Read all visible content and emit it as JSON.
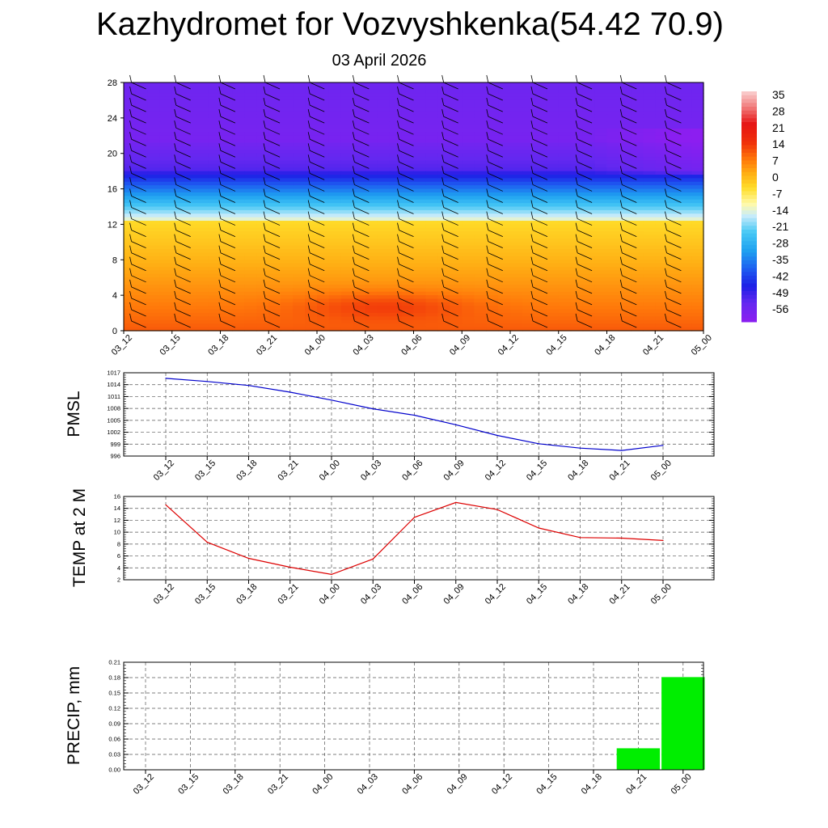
{
  "title": "Kazhydromet for Vozvyshkenka(54.42 70.9)",
  "subtitle": "03 April 2026",
  "colors": {
    "pmsl_line": "#0000cc",
    "temp_line": "#dd0000",
    "precip_bar": "#00ee00"
  },
  "chart_data": [
    {
      "type": "heatmap",
      "name": "upper-air-section",
      "ylim": [
        0,
        28
      ],
      "yticks": [
        "0",
        "4",
        "8",
        "12",
        "16",
        "20",
        "24",
        "28"
      ],
      "categories": [
        "03_12",
        "03_15",
        "03_18",
        "03_21",
        "04_00",
        "04_03",
        "04_06",
        "04_09",
        "04_12",
        "04_15",
        "04_18",
        "04_21",
        "05_00"
      ],
      "colorbar_labels": [
        "35",
        "28",
        "21",
        "14",
        "7",
        "0",
        "-7",
        "-14",
        "-21",
        "-28",
        "-35",
        "-42",
        "-49",
        "-56"
      ],
      "colorbar_range": [
        -60,
        38
      ]
    },
    {
      "type": "line",
      "name": "pmsl",
      "ylabel": "PMSL",
      "ylim": [
        996,
        1017
      ],
      "yticks": [
        "996",
        "999",
        "1002",
        "1005",
        "1008",
        "1011",
        "1014",
        "1017"
      ],
      "categories": [
        "03_12",
        "03_15",
        "03_18",
        "03_21",
        "04_00",
        "04_03",
        "04_06",
        "04_09",
        "04_12",
        "04_15",
        "04_18",
        "04_21",
        "05_00"
      ],
      "values": [
        1015.6,
        1014.8,
        1013.8,
        1012.1,
        1010.1,
        1007.9,
        1006.3,
        1003.9,
        1001.2,
        999.1,
        998.0,
        997.4,
        998.7
      ]
    },
    {
      "type": "line",
      "name": "temp-2m",
      "ylabel": "TEMP at 2 M",
      "ylim": [
        2,
        16
      ],
      "yticks": [
        "2",
        "4",
        "6",
        "8",
        "10",
        "12",
        "14",
        "16"
      ],
      "categories": [
        "03_12",
        "03_15",
        "03_18",
        "03_21",
        "04_00",
        "04_03",
        "04_06",
        "04_09",
        "04_12",
        "04_15",
        "04_18",
        "04_21",
        "05_00"
      ],
      "values": [
        14.6,
        8.3,
        5.6,
        4.1,
        2.9,
        5.5,
        12.5,
        15.0,
        13.8,
        10.7,
        9.1,
        9.0,
        8.6
      ]
    },
    {
      "type": "bar",
      "name": "precip",
      "ylabel": "PRECIP, mm",
      "ylim": [
        0,
        0.21
      ],
      "yticks": [
        "0.00",
        "0.03",
        "0.06",
        "0.09",
        "0.12",
        "0.15",
        "0.18",
        "0.21"
      ],
      "categories": [
        "03_12",
        "03_15",
        "03_18",
        "03_21",
        "04_00",
        "04_03",
        "04_06",
        "04_09",
        "04_12",
        "04_15",
        "04_18",
        "04_21",
        "05_00"
      ],
      "values": [
        0,
        0,
        0,
        0,
        0,
        0,
        0,
        0,
        0,
        0,
        0,
        0.042,
        0.181
      ]
    }
  ]
}
